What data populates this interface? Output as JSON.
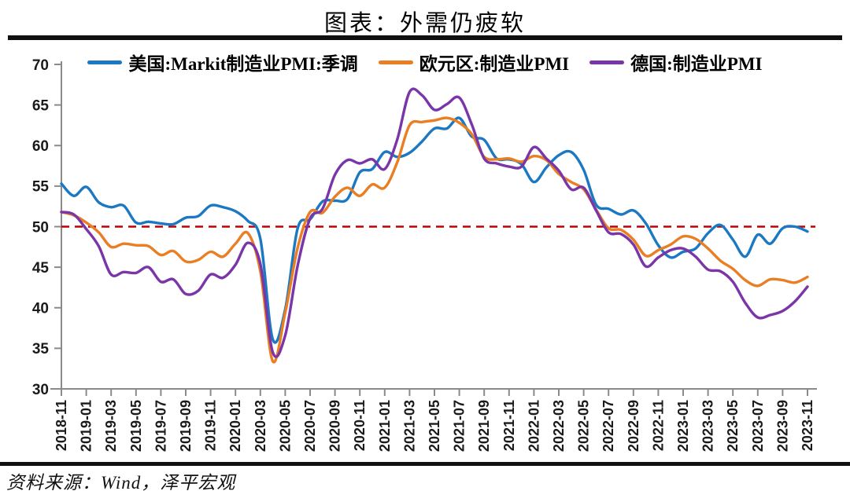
{
  "chart_data": {
    "type": "line",
    "title": "图表：外需仍疲软",
    "source": "资料来源：Wind，泽平宏观",
    "legend_position": "top",
    "grid": false,
    "y_axis": {
      "min": 30,
      "max": 70,
      "step": 5,
      "ticks": [
        70,
        65,
        60,
        55,
        50,
        45,
        40,
        35,
        30
      ]
    },
    "reference_line": {
      "value": 50,
      "color": "#C00000",
      "style": "dashed"
    },
    "x_labels": [
      "2018-11",
      "2019-01",
      "2019-03",
      "2019-05",
      "2019-07",
      "2019-09",
      "2019-11",
      "2020-01",
      "2020-03",
      "2020-05",
      "2020-07",
      "2020-09",
      "2020-11",
      "2021-01",
      "2021-03",
      "2021-05",
      "2021-07",
      "2021-09",
      "2021-11",
      "2022-01",
      "2022-03",
      "2022-05",
      "2022-07",
      "2022-09",
      "2022-11",
      "2023-01",
      "2023-03",
      "2023-05",
      "2023-07",
      "2023-09",
      "2023-11"
    ],
    "x": [
      "2018-11",
      "2018-12",
      "2019-01",
      "2019-02",
      "2019-03",
      "2019-04",
      "2019-05",
      "2019-06",
      "2019-07",
      "2019-08",
      "2019-09",
      "2019-10",
      "2019-11",
      "2019-12",
      "2020-01",
      "2020-02",
      "2020-03",
      "2020-04",
      "2020-05",
      "2020-06",
      "2020-07",
      "2020-08",
      "2020-09",
      "2020-10",
      "2020-11",
      "2020-12",
      "2021-01",
      "2021-02",
      "2021-03",
      "2021-04",
      "2021-05",
      "2021-06",
      "2021-07",
      "2021-08",
      "2021-09",
      "2021-10",
      "2021-11",
      "2021-12",
      "2022-01",
      "2022-02",
      "2022-03",
      "2022-04",
      "2022-05",
      "2022-06",
      "2022-07",
      "2022-08",
      "2022-09",
      "2022-10",
      "2022-11",
      "2022-12",
      "2023-01",
      "2023-02",
      "2023-03",
      "2023-04",
      "2023-05",
      "2023-06",
      "2023-07",
      "2023-08",
      "2023-09",
      "2023-10",
      "2023-11"
    ],
    "series": [
      {
        "name": "美国:Markit制造业PMI:季调",
        "color": "#1B78C2",
        "values": [
          55.3,
          53.8,
          54.9,
          53.0,
          52.4,
          52.6,
          50.5,
          50.6,
          50.4,
          50.3,
          51.1,
          51.3,
          52.6,
          52.4,
          51.9,
          50.7,
          48.5,
          36.1,
          39.8,
          49.8,
          50.9,
          53.1,
          53.2,
          53.4,
          56.7,
          57.1,
          59.2,
          58.6,
          59.1,
          60.5,
          62.1,
          62.1,
          63.4,
          61.1,
          60.7,
          58.4,
          58.3,
          57.7,
          55.5,
          57.3,
          58.8,
          59.2,
          57.0,
          52.7,
          52.2,
          51.5,
          52.0,
          50.4,
          47.7,
          46.2,
          46.9,
          47.3,
          49.2,
          50.2,
          48.4,
          46.3,
          49.0,
          47.9,
          49.8,
          50.0,
          49.4
        ]
      },
      {
        "name": "欧元区:制造业PMI",
        "color": "#E97E23",
        "values": [
          51.8,
          51.4,
          50.5,
          49.3,
          47.5,
          47.9,
          47.7,
          47.6,
          46.5,
          47.0,
          45.7,
          45.9,
          46.9,
          46.3,
          47.9,
          49.2,
          44.5,
          33.4,
          39.4,
          47.4,
          51.8,
          51.7,
          53.7,
          54.8,
          53.8,
          55.2,
          54.8,
          57.9,
          62.5,
          62.9,
          63.1,
          63.4,
          62.8,
          61.4,
          58.6,
          58.3,
          58.4,
          58.0,
          58.7,
          58.2,
          56.5,
          55.5,
          54.6,
          52.1,
          49.8,
          49.6,
          48.4,
          46.4,
          47.1,
          47.8,
          48.8,
          48.5,
          47.3,
          45.8,
          44.8,
          43.4,
          42.7,
          43.5,
          43.4,
          43.1,
          43.8
        ]
      },
      {
        "name": "德国:制造业PMI",
        "color": "#7A35A8",
        "values": [
          51.8,
          51.5,
          49.7,
          47.6,
          44.1,
          44.4,
          44.3,
          45.0,
          43.2,
          43.5,
          41.7,
          42.1,
          44.1,
          43.7,
          45.3,
          48.0,
          45.4,
          34.5,
          36.6,
          45.2,
          51.0,
          52.2,
          56.4,
          58.2,
          57.8,
          58.3,
          57.1,
          60.7,
          66.6,
          66.2,
          64.4,
          65.1,
          65.9,
          62.6,
          58.4,
          57.8,
          57.4,
          57.4,
          59.8,
          58.4,
          56.9,
          54.6,
          54.8,
          52.0,
          49.3,
          49.1,
          47.8,
          45.1,
          46.2,
          47.1,
          47.3,
          46.3,
          44.7,
          44.5,
          43.2,
          40.6,
          38.8,
          39.1,
          39.6,
          40.8,
          42.6
        ]
      }
    ]
  }
}
